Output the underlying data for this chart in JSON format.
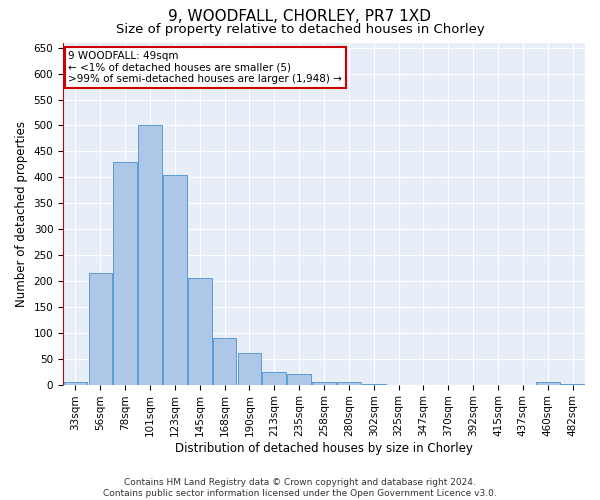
{
  "title": "9, WOODFALL, CHORLEY, PR7 1XD",
  "subtitle": "Size of property relative to detached houses in Chorley",
  "xlabel": "Distribution of detached houses by size in Chorley",
  "ylabel": "Number of detached properties",
  "footer_line1": "Contains HM Land Registry data © Crown copyright and database right 2024.",
  "footer_line2": "Contains public sector information licensed under the Open Government Licence v3.0.",
  "categories": [
    "33sqm",
    "56sqm",
    "78sqm",
    "101sqm",
    "123sqm",
    "145sqm",
    "168sqm",
    "190sqm",
    "213sqm",
    "235sqm",
    "258sqm",
    "280sqm",
    "302sqm",
    "325sqm",
    "347sqm",
    "370sqm",
    "392sqm",
    "415sqm",
    "437sqm",
    "460sqm",
    "482sqm"
  ],
  "values": [
    5,
    215,
    430,
    500,
    405,
    205,
    90,
    60,
    25,
    20,
    5,
    5,
    2,
    0,
    0,
    0,
    0,
    0,
    0,
    5,
    2
  ],
  "bar_color": "#aec6e8",
  "bar_edge_color": "#5b9bd5",
  "highlight_color": "#cc0000",
  "annotation_line1": "9 WOODFALL: 49sqm",
  "annotation_line2": "← <1% of detached houses are smaller (5)",
  "annotation_line3": ">99% of semi-detached houses are larger (1,948) →",
  "annotation_box_color": "#ffffff",
  "annotation_box_edge": "#cc0000",
  "ylim": [
    0,
    660
  ],
  "yticks": [
    0,
    50,
    100,
    150,
    200,
    250,
    300,
    350,
    400,
    450,
    500,
    550,
    600,
    650
  ],
  "background_color": "#e8eef8",
  "grid_color": "#ffffff",
  "title_fontsize": 11,
  "subtitle_fontsize": 9.5,
  "axis_label_fontsize": 8.5,
  "tick_fontsize": 7.5,
  "footer_fontsize": 6.5
}
